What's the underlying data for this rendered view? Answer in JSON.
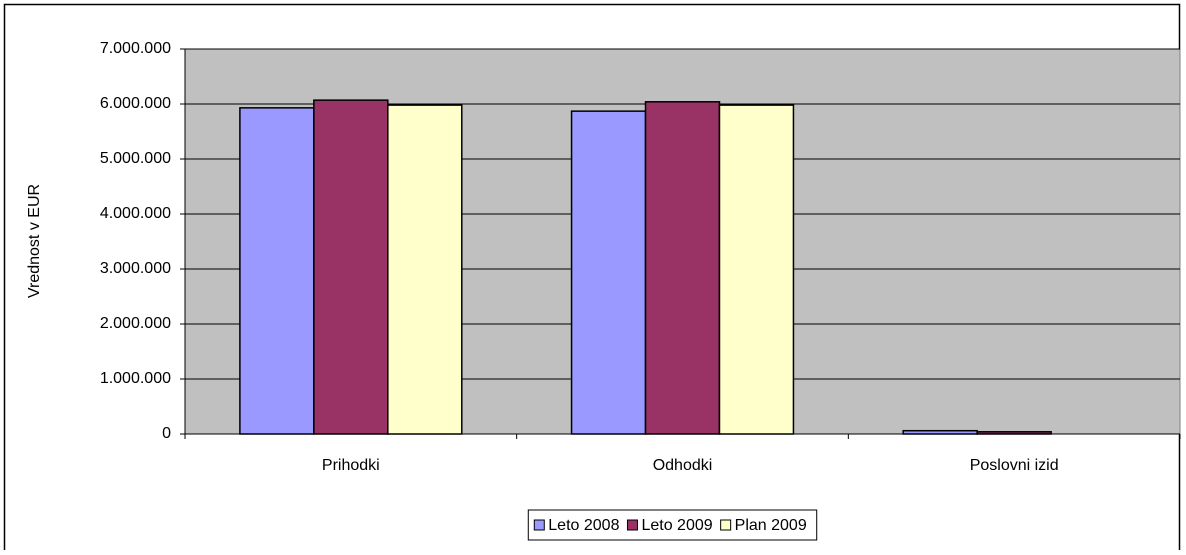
{
  "chart_data": {
    "type": "bar",
    "y_label": "Vrednost v EUR",
    "categories": [
      "Prihodki",
      "Odhodki",
      "Poslovni izid"
    ],
    "series": [
      {
        "name": "Leto 2008",
        "color": "#9999ff",
        "values": [
          5930000,
          5870000,
          60000
        ]
      },
      {
        "name": "Leto 2009",
        "color": "#993366",
        "values": [
          6070000,
          6040000,
          40000
        ]
      },
      {
        "name": "Plan 2009",
        "color": "#ffffcc",
        "values": [
          5980000,
          5980000,
          0
        ]
      }
    ],
    "ylim": [
      0,
      7000000
    ],
    "yticks": [
      0,
      {
        "value": 1000000,
        "label": "1.000.000"
      },
      {
        "value": 2000000,
        "label": "2.000.000"
      },
      {
        "value": 3000000,
        "label": "3.000.000"
      },
      {
        "value": 4000000,
        "label": "4.000.000"
      },
      {
        "value": 5000000,
        "label": "5.000.000"
      },
      {
        "value": 6000000,
        "label": "6.000.000"
      },
      {
        "value": 7000000,
        "label": "7.000.000"
      }
    ],
    "grid": true,
    "plot_background": "#c0c0c0",
    "legend": "bottom"
  }
}
